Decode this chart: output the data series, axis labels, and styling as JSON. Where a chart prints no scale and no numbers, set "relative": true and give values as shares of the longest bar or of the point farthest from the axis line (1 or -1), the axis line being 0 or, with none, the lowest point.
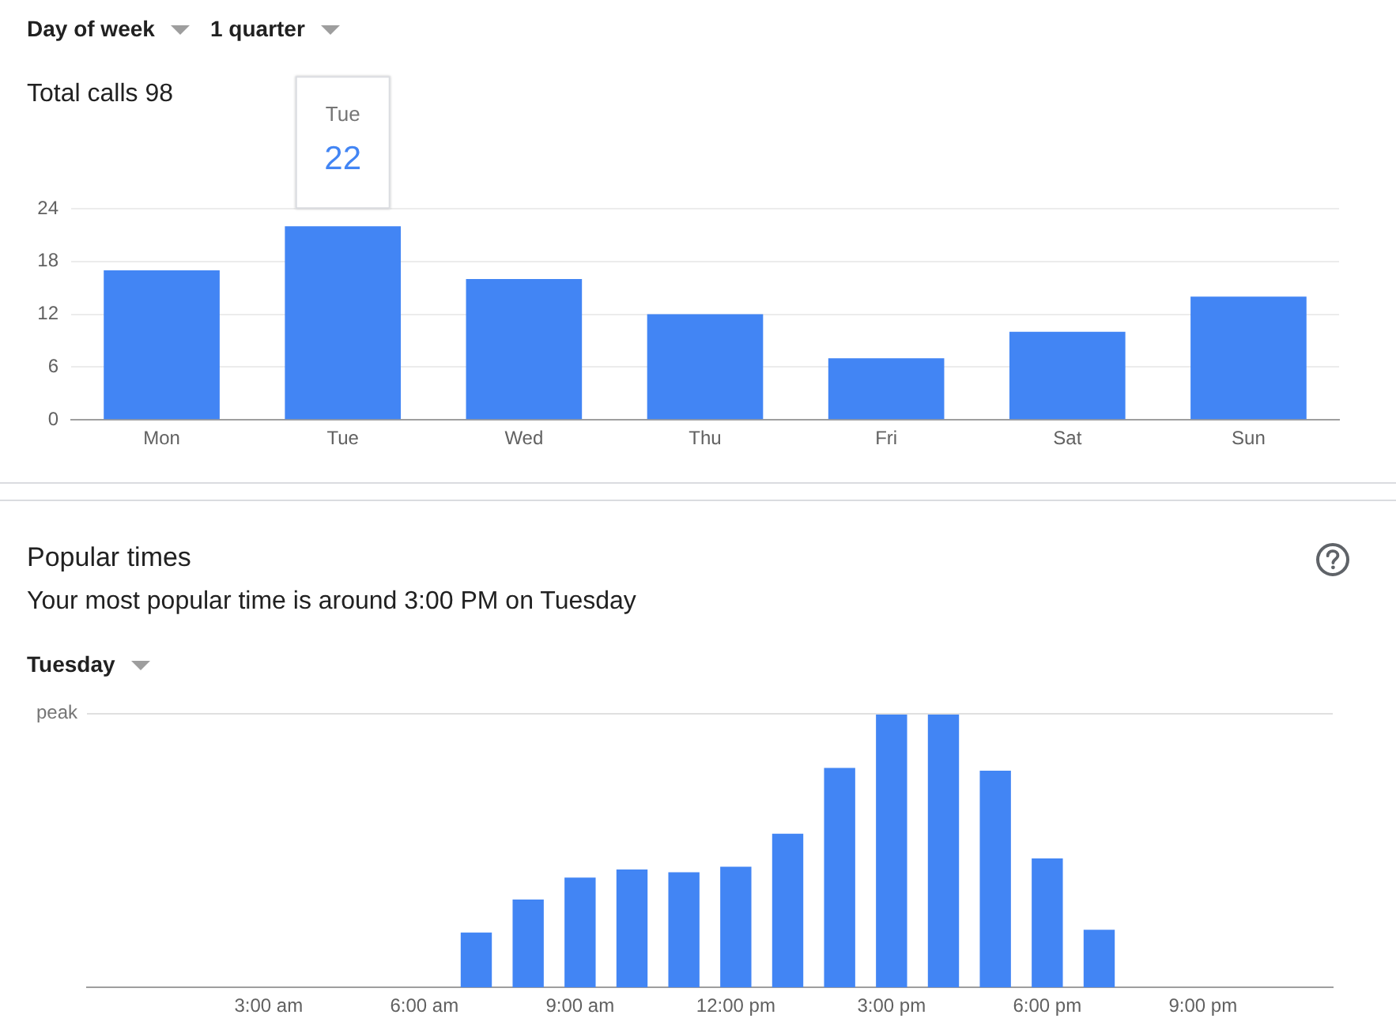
{
  "chart_data": [
    {
      "type": "bar",
      "title": "Total calls 98",
      "categories": [
        "Mon",
        "Tue",
        "Wed",
        "Thu",
        "Fri",
        "Sat",
        "Sun"
      ],
      "values": [
        17,
        22,
        16,
        12,
        7,
        10,
        14
      ],
      "color": "#4285f4",
      "ylim": [
        0,
        24
      ],
      "yticks": [
        0,
        6,
        12,
        18,
        24
      ],
      "grid": "y",
      "legend": false,
      "annotations": [
        "Day of week",
        "1 quarter",
        {
          "text": "22",
          "x": "Tue",
          "y": 22
        }
      ]
    },
    {
      "type": "bar",
      "title": "Popular times",
      "subtitle": "Your most popular time is around 3:00 PM on Tuesday",
      "categories": [
        null,
        null,
        null,
        "3:00 am",
        null,
        null,
        "6:00 am",
        null,
        null,
        "9:00 am",
        null,
        null,
        "12:00 pm",
        null,
        null,
        "3:00 pm",
        null,
        null,
        "6:00 pm",
        null,
        null,
        "9:00 pm",
        null,
        null
      ],
      "values": [
        0,
        0,
        0,
        0,
        0,
        0,
        0,
        0.2,
        0.32,
        0.4,
        0.43,
        0.42,
        0.44,
        0.56,
        0.8,
        1,
        1,
        0.79,
        0.47,
        0.21,
        0,
        0,
        0,
        0
      ],
      "color": "#4285f4",
      "relative": true,
      "grid": false,
      "legend": false,
      "ref_lines": [
        {
          "axis": "y",
          "value": 1,
          "label": "peak"
        }
      ],
      "annotations": [
        "Tuesday"
      ]
    }
  ]
}
